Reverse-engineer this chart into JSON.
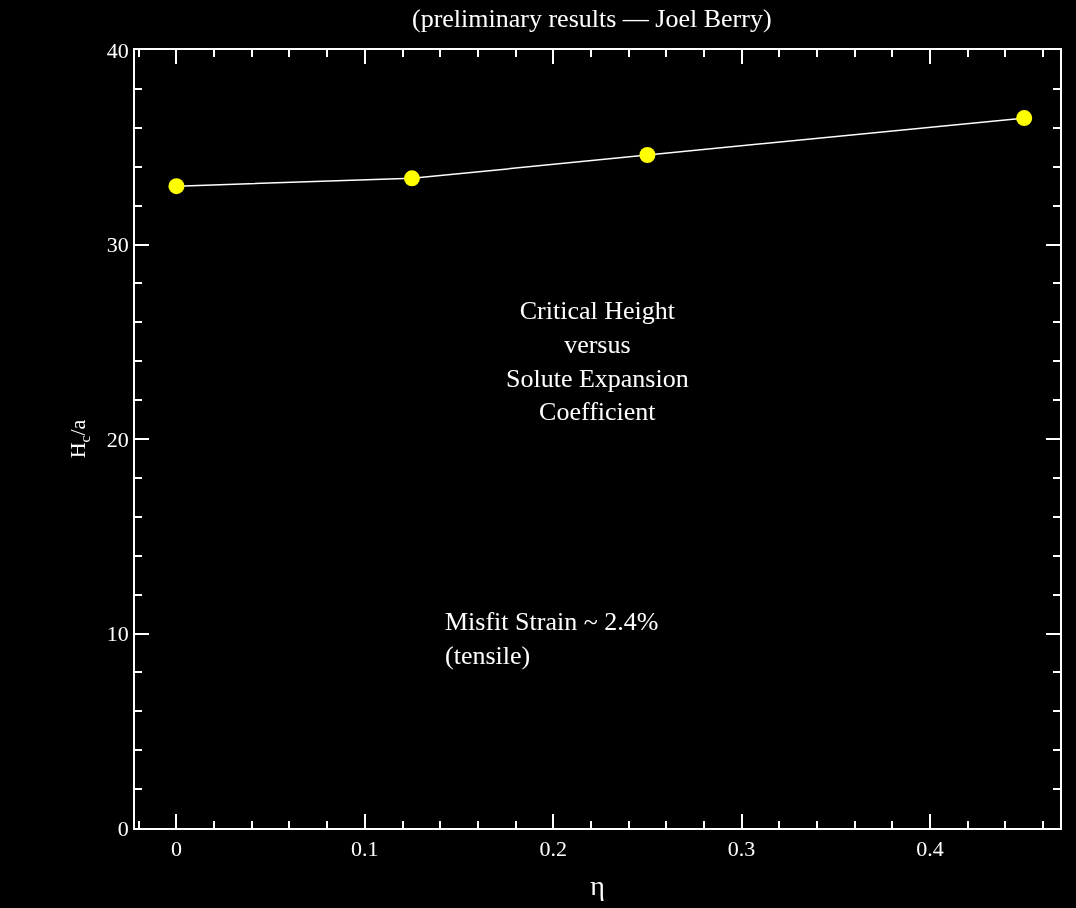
{
  "chart_data": {
    "type": "line",
    "title": "(preliminary results — Joel Berry)",
    "xlabel": "η",
    "ylabel": "H$_{c}$/a",
    "x": [
      0,
      0.125,
      0.25,
      0.45
    ],
    "series": [
      {
        "color": "#ffff00",
        "values": [
          33.0,
          33.4,
          34.6,
          36.5
        ]
      }
    ],
    "xlim": [
      -0.022,
      0.469
    ],
    "ylim": [
      0,
      40
    ],
    "xticks": [
      0,
      0.1,
      0.2,
      0.3,
      0.4
    ],
    "yticks": [
      0,
      10,
      20,
      30,
      40
    ],
    "marker": "circle",
    "line_style": "solid",
    "annotations": [
      "Critical Height\nversus\nSolute Expansion\nCoefficient",
      "Misfit Strain ~ 2.4%\n(tensile)"
    ]
  }
}
